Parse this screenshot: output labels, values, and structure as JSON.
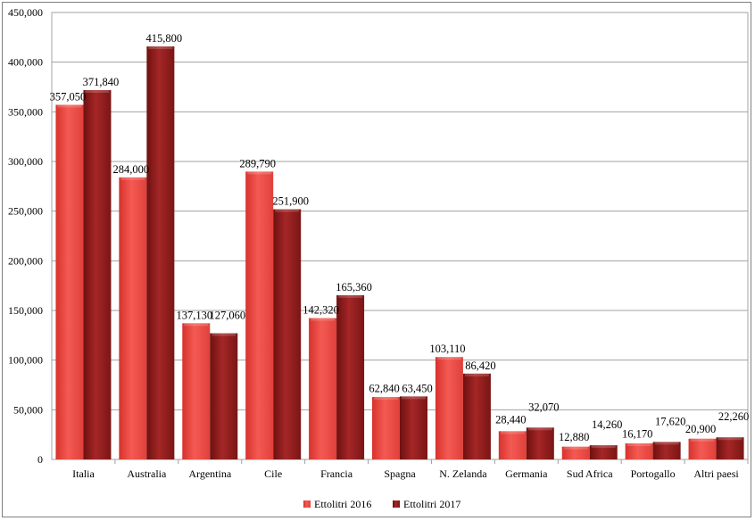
{
  "chart_data": {
    "type": "bar",
    "title": "",
    "xlabel": "",
    "ylabel": "",
    "ylim": [
      0,
      450000
    ],
    "yticks": [
      "0",
      "50,000",
      "100,000",
      "150,000",
      "200,000",
      "250,000",
      "300,000",
      "350,000",
      "400,000",
      "450,000"
    ],
    "categories": [
      "Italia",
      "Australia",
      "Argentina",
      "Cile",
      "Francia",
      "Spagna",
      "N. Zelanda",
      "Germania",
      "Sud Africa",
      "Portogallo",
      "Altri paesi"
    ],
    "series": [
      {
        "name": "Ettolitri 2016",
        "color": "#f04a44",
        "values": [
          357050,
          284000,
          137130,
          289790,
          142320,
          62840,
          103110,
          28440,
          12880,
          16170,
          20900
        ],
        "labels": [
          "357,050",
          "284,000",
          "137,130",
          "289,790",
          "142,320",
          "62,840",
          "103,110",
          "28,440",
          "12,880",
          "16,170",
          "20,900"
        ]
      },
      {
        "name": "Ettolitri 2017",
        "color": "#8b1a1a",
        "values": [
          371840,
          415800,
          127060,
          251900,
          165360,
          63450,
          86420,
          32070,
          14260,
          17620,
          22260
        ],
        "labels": [
          "371,840",
          "415,800",
          "127,060",
          "251,900",
          "165,360",
          "63,450",
          "86,420",
          "32,070",
          "14,260",
          "17,620",
          "22,260"
        ]
      }
    ],
    "grid": true,
    "legend": "bottom"
  }
}
